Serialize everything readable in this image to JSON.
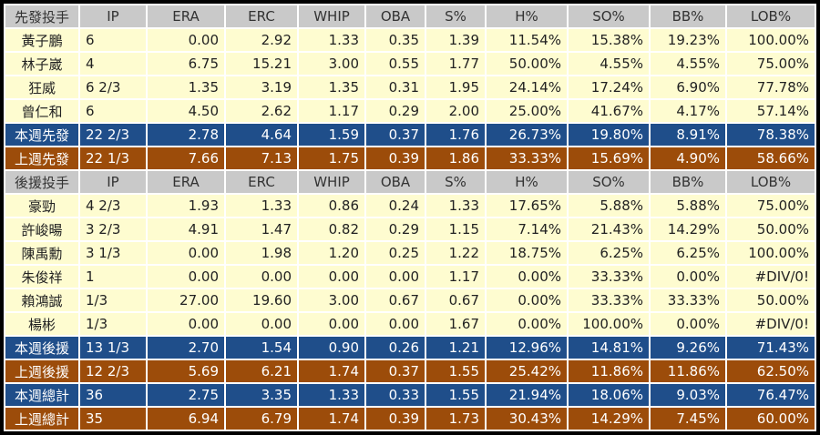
{
  "colors": {
    "header": "#c9c9c9",
    "body": "#fefcd0",
    "this_week": "#1f4e8a",
    "last_week": "#9c4c0a"
  },
  "columns": [
    "IP",
    "ERA",
    "ERC",
    "WHIP",
    "OBA",
    "S%",
    "H%",
    "SO%",
    "BB%",
    "LOB%"
  ],
  "sections": [
    {
      "title": "先發投手",
      "rows": [
        {
          "type": "body",
          "cells": [
            "黃子鵬",
            "6",
            "0.00",
            "2.92",
            "1.33",
            "0.35",
            "1.39",
            "11.54%",
            "15.38%",
            "19.23%",
            "100.00%"
          ]
        },
        {
          "type": "body",
          "cells": [
            "林子崴",
            "4",
            "6.75",
            "15.21",
            "3.00",
            "0.55",
            "1.77",
            "50.00%",
            "4.55%",
            "4.55%",
            "75.00%"
          ]
        },
        {
          "type": "body",
          "cells": [
            "狂威",
            "6 2/3",
            "1.35",
            "3.19",
            "1.35",
            "0.31",
            "1.95",
            "24.14%",
            "17.24%",
            "6.90%",
            "77.78%"
          ]
        },
        {
          "type": "body",
          "cells": [
            "曾仁和",
            "6",
            "4.50",
            "2.62",
            "1.17",
            "0.29",
            "2.00",
            "25.00%",
            "41.67%",
            "4.17%",
            "57.14%"
          ]
        },
        {
          "type": "blue",
          "cells": [
            "本週先發",
            "22 2/3",
            "2.78",
            "4.64",
            "1.59",
            "0.37",
            "1.76",
            "26.73%",
            "19.80%",
            "8.91%",
            "78.38%"
          ]
        },
        {
          "type": "brown",
          "cells": [
            "上週先發",
            "22 1/3",
            "7.66",
            "7.13",
            "1.75",
            "0.39",
            "1.86",
            "33.33%",
            "15.69%",
            "4.90%",
            "58.66%"
          ]
        }
      ]
    },
    {
      "title": "後援投手",
      "rows": [
        {
          "type": "body",
          "cells": [
            "豪勁",
            "4 2/3",
            "1.93",
            "1.33",
            "0.86",
            "0.24",
            "1.33",
            "17.65%",
            "5.88%",
            "5.88%",
            "75.00%"
          ]
        },
        {
          "type": "body",
          "cells": [
            "許峻暘",
            "3 2/3",
            "4.91",
            "1.47",
            "0.82",
            "0.29",
            "1.15",
            "7.14%",
            "21.43%",
            "14.29%",
            "50.00%"
          ]
        },
        {
          "type": "body",
          "cells": [
            "陳禹勳",
            "3 1/3",
            "0.00",
            "1.98",
            "1.20",
            "0.25",
            "1.22",
            "18.75%",
            "6.25%",
            "6.25%",
            "100.00%"
          ]
        },
        {
          "type": "body",
          "cells": [
            "朱俊祥",
            "1",
            "0.00",
            "0.00",
            "0.00",
            "0.00",
            "1.17",
            "0.00%",
            "33.33%",
            "0.00%",
            "#DIV/0!"
          ]
        },
        {
          "type": "body",
          "cells": [
            "賴鴻誠",
            " 1/3",
            "27.00",
            "19.60",
            "3.00",
            "0.67",
            "0.67",
            "0.00%",
            "33.33%",
            "33.33%",
            "50.00%"
          ]
        },
        {
          "type": "body",
          "cells": [
            "楊彬",
            " 1/3",
            "0.00",
            "0.00",
            "0.00",
            "0.00",
            "1.67",
            "0.00%",
            "100.00%",
            "0.00%",
            "#DIV/0!"
          ]
        },
        {
          "type": "blue",
          "cells": [
            "本週後援",
            "13 1/3",
            "2.70",
            "1.54",
            "0.90",
            "0.26",
            "1.21",
            "12.96%",
            "14.81%",
            "9.26%",
            "71.43%"
          ]
        },
        {
          "type": "brown",
          "cells": [
            "上週後援",
            "12 2/3",
            "5.69",
            "6.21",
            "1.74",
            "0.37",
            "1.55",
            "25.42%",
            "11.86%",
            "11.86%",
            "62.50%"
          ]
        },
        {
          "type": "blue",
          "cells": [
            "本週總計",
            "36",
            "2.75",
            "3.35",
            "1.33",
            "0.33",
            "1.55",
            "21.94%",
            "18.06%",
            "9.03%",
            "76.47%"
          ]
        },
        {
          "type": "brown",
          "cells": [
            "上週總計",
            "35",
            "6.94",
            "6.79",
            "1.74",
            "0.39",
            "1.73",
            "30.43%",
            "14.29%",
            "7.45%",
            "60.00%"
          ]
        }
      ]
    }
  ]
}
